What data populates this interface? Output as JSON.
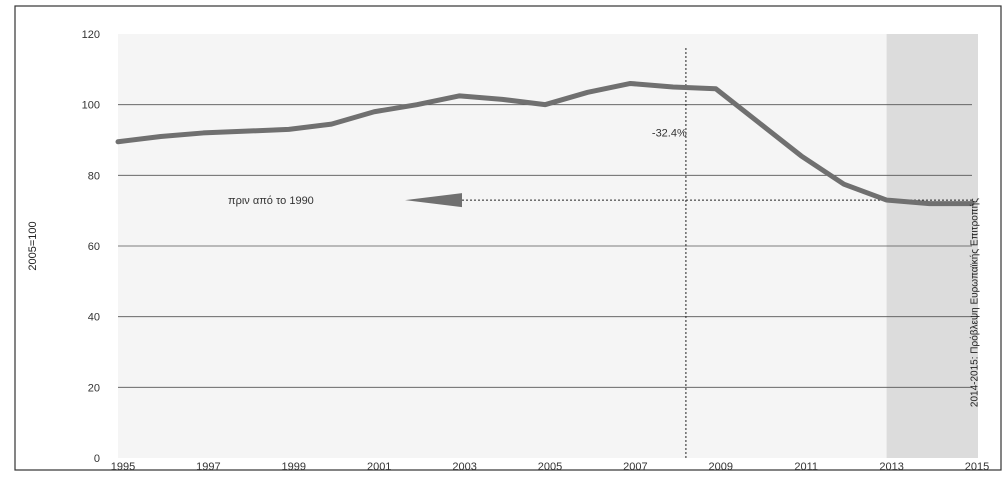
{
  "chart_data": {
    "type": "line",
    "title": "",
    "xlabel": "",
    "ylabel": "2005=100",
    "x": [
      1995,
      1996,
      1997,
      1998,
      1999,
      2000,
      2001,
      2002,
      2003,
      2004,
      2005,
      2006,
      2007,
      2008,
      2009,
      2010,
      2011,
      2012,
      2013,
      2014,
      2015
    ],
    "x_tick_labels": [
      "1995",
      "1997",
      "1999",
      "2001",
      "2003",
      "2005",
      "2007",
      "2009",
      "2011",
      "2013",
      "2015"
    ],
    "x_tick_values": [
      1995,
      1997,
      1999,
      2001,
      2003,
      2005,
      2007,
      2009,
      2011,
      2013,
      2015
    ],
    "y_ticks": [
      0,
      20,
      40,
      60,
      80,
      100,
      120
    ],
    "xlim": [
      1995,
      2015
    ],
    "ylim": [
      0,
      120
    ],
    "grid": "horizontal",
    "series": [
      {
        "name": "",
        "color": "#707070",
        "values": [
          89.5,
          91,
          92,
          92.5,
          93,
          94.5,
          98,
          100,
          102.5,
          101.5,
          100,
          103.5,
          106,
          105,
          104.5,
          95,
          85.5,
          77.5,
          73,
          72,
          72
        ]
      }
    ],
    "forecast_band": {
      "from": 2013,
      "to": 2015,
      "label": "2014-2015: Πρόβλεψη Ευρωπαϊκής Επιτροπής"
    },
    "annotations": {
      "peak_marker_x": 2008.3,
      "change_label": "-32.4%",
      "reference_level": 73,
      "reference_label": "πριν από το 1990"
    }
  }
}
